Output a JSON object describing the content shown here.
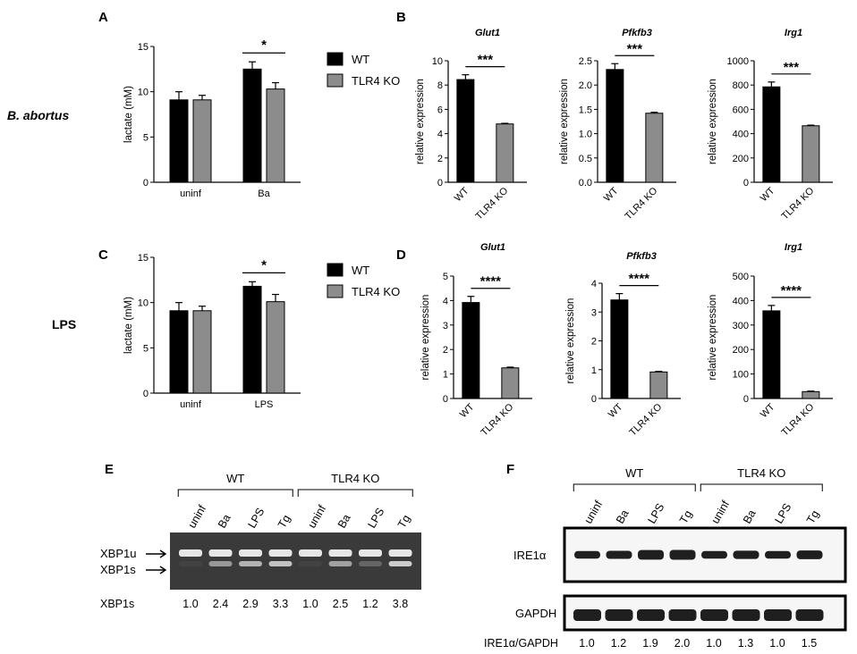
{
  "row_labels": {
    "top": "B. abortus",
    "bottom": "LPS"
  },
  "panel_labels": {
    "A": "A",
    "B": "B",
    "C": "C",
    "D": "D",
    "E": "E",
    "F": "F"
  },
  "legend": {
    "wt": "WT",
    "ko": "TLR4 KO"
  },
  "colors": {
    "wt": "#000000",
    "ko": "#8c8c8c",
    "gel": "#3a3a3a",
    "band_gel": "#e6e6e6",
    "band_blot": "#1f1f1f"
  },
  "chart_data": [
    {
      "id": "A",
      "type": "bar",
      "title": "",
      "ylabel": "lactate (mM)",
      "ylim": [
        0,
        15
      ],
      "yticks": [
        "0",
        "5",
        "10",
        "15"
      ],
      "categories": [
        "uninf",
        "Ba"
      ],
      "series": [
        {
          "name": "WT",
          "values": [
            9.1,
            12.5
          ],
          "err": [
            0.9,
            0.8
          ]
        },
        {
          "name": "TLR4 KO",
          "values": [
            9.1,
            10.3
          ],
          "err": [
            0.5,
            0.7
          ]
        }
      ],
      "significance": [
        {
          "category": "Ba",
          "label": "*"
        }
      ]
    },
    {
      "id": "B1",
      "type": "bar",
      "title": "Glut1",
      "ylabel": "relative expression",
      "ylim": [
        0,
        10
      ],
      "yticks": [
        "0",
        "2",
        "4",
        "6",
        "8",
        "10"
      ],
      "categories": [
        "WT",
        "TLR4 KO"
      ],
      "values": [
        8.45,
        4.8
      ],
      "err": [
        0.4,
        0.05
      ],
      "significance": "***"
    },
    {
      "id": "B2",
      "type": "bar",
      "title": "Pfkfb3",
      "ylabel": "relative expression",
      "ylim": [
        0,
        2.5
      ],
      "yticks": [
        "0.0",
        "0.5",
        "1.0",
        "1.5",
        "2.0",
        "2.5"
      ],
      "categories": [
        "WT",
        "TLR4 KO"
      ],
      "values": [
        2.32,
        1.42
      ],
      "err": [
        0.12,
        0.02
      ],
      "significance": "***"
    },
    {
      "id": "B3",
      "type": "bar",
      "title": "Irg1",
      "ylabel": "relative expression",
      "ylim": [
        0,
        1000
      ],
      "yticks": [
        "0",
        "200",
        "400",
        "600",
        "800",
        "1000"
      ],
      "categories": [
        "WT",
        "TLR4 KO"
      ],
      "values": [
        785,
        465
      ],
      "err": [
        40,
        5
      ],
      "significance": "***"
    },
    {
      "id": "C",
      "type": "bar",
      "title": "",
      "ylabel": "lactate (mM)",
      "ylim": [
        0,
        15
      ],
      "yticks": [
        "0",
        "5",
        "10",
        "15"
      ],
      "categories": [
        "uninf",
        "LPS"
      ],
      "series": [
        {
          "name": "WT",
          "values": [
            9.1,
            11.8
          ],
          "err": [
            0.9,
            0.5
          ]
        },
        {
          "name": "TLR4 KO",
          "values": [
            9.1,
            10.1
          ],
          "err": [
            0.5,
            0.8
          ]
        }
      ],
      "significance": [
        {
          "category": "LPS",
          "label": "*"
        }
      ]
    },
    {
      "id": "D1",
      "type": "bar",
      "title": "Glut1",
      "ylabel": "relative expression",
      "ylim": [
        0,
        5
      ],
      "yticks": [
        "0",
        "1",
        "2",
        "3",
        "4",
        "5"
      ],
      "categories": [
        "WT",
        "TLR4 KO"
      ],
      "values": [
        3.92,
        1.25
      ],
      "err": [
        0.25,
        0.03
      ],
      "significance": "****"
    },
    {
      "id": "D2",
      "type": "bar",
      "title": "Pfkfb3",
      "ylabel": "relative expression",
      "ylim": [
        0,
        4
      ],
      "yticks": [
        "0",
        "1",
        "2",
        "3",
        "4"
      ],
      "categories": [
        "WT",
        "TLR4 KO"
      ],
      "values": [
        3.42,
        0.92
      ],
      "err": [
        0.22,
        0.02
      ],
      "significance": "****"
    },
    {
      "id": "D3",
      "type": "bar",
      "title": "Irg1",
      "ylabel": "relative expression",
      "ylim": [
        0,
        500
      ],
      "yticks": [
        "0",
        "100",
        "200",
        "300",
        "400",
        "500"
      ],
      "categories": [
        "WT",
        "TLR4 KO"
      ],
      "values": [
        358,
        28
      ],
      "err": [
        22,
        2
      ],
      "significance": "****"
    }
  ],
  "gel": {
    "groups": [
      "WT",
      "TLR4 KO"
    ],
    "lanes": [
      "uninf",
      "Ba",
      "LPS",
      "Tg",
      "uninf",
      "Ba",
      "LPS",
      "Tg"
    ],
    "band_labels": [
      "XBP1u",
      "XBP1s"
    ],
    "quant_label": "XBP1s",
    "quant": [
      "1.0",
      "2.4",
      "2.9",
      "3.3",
      "1.0",
      "2.5",
      "1.2",
      "3.8"
    ],
    "xbp1s_intensity": [
      0.05,
      0.55,
      0.7,
      0.8,
      0.05,
      0.6,
      0.25,
      0.85
    ]
  },
  "blot": {
    "groups": [
      "WT",
      "TLR4 KO"
    ],
    "lanes": [
      "uninf",
      "Ba",
      "LPS",
      "Tg",
      "uninf",
      "Ba",
      "LPS",
      "Tg"
    ],
    "labels": [
      "IRE1α",
      "GAPDH"
    ],
    "quant_label": "IRE1α/GAPDH",
    "quant": [
      "1.0",
      "1.2",
      "1.9",
      "2.0",
      "1.0",
      "1.3",
      "1.0",
      "1.5"
    ]
  }
}
